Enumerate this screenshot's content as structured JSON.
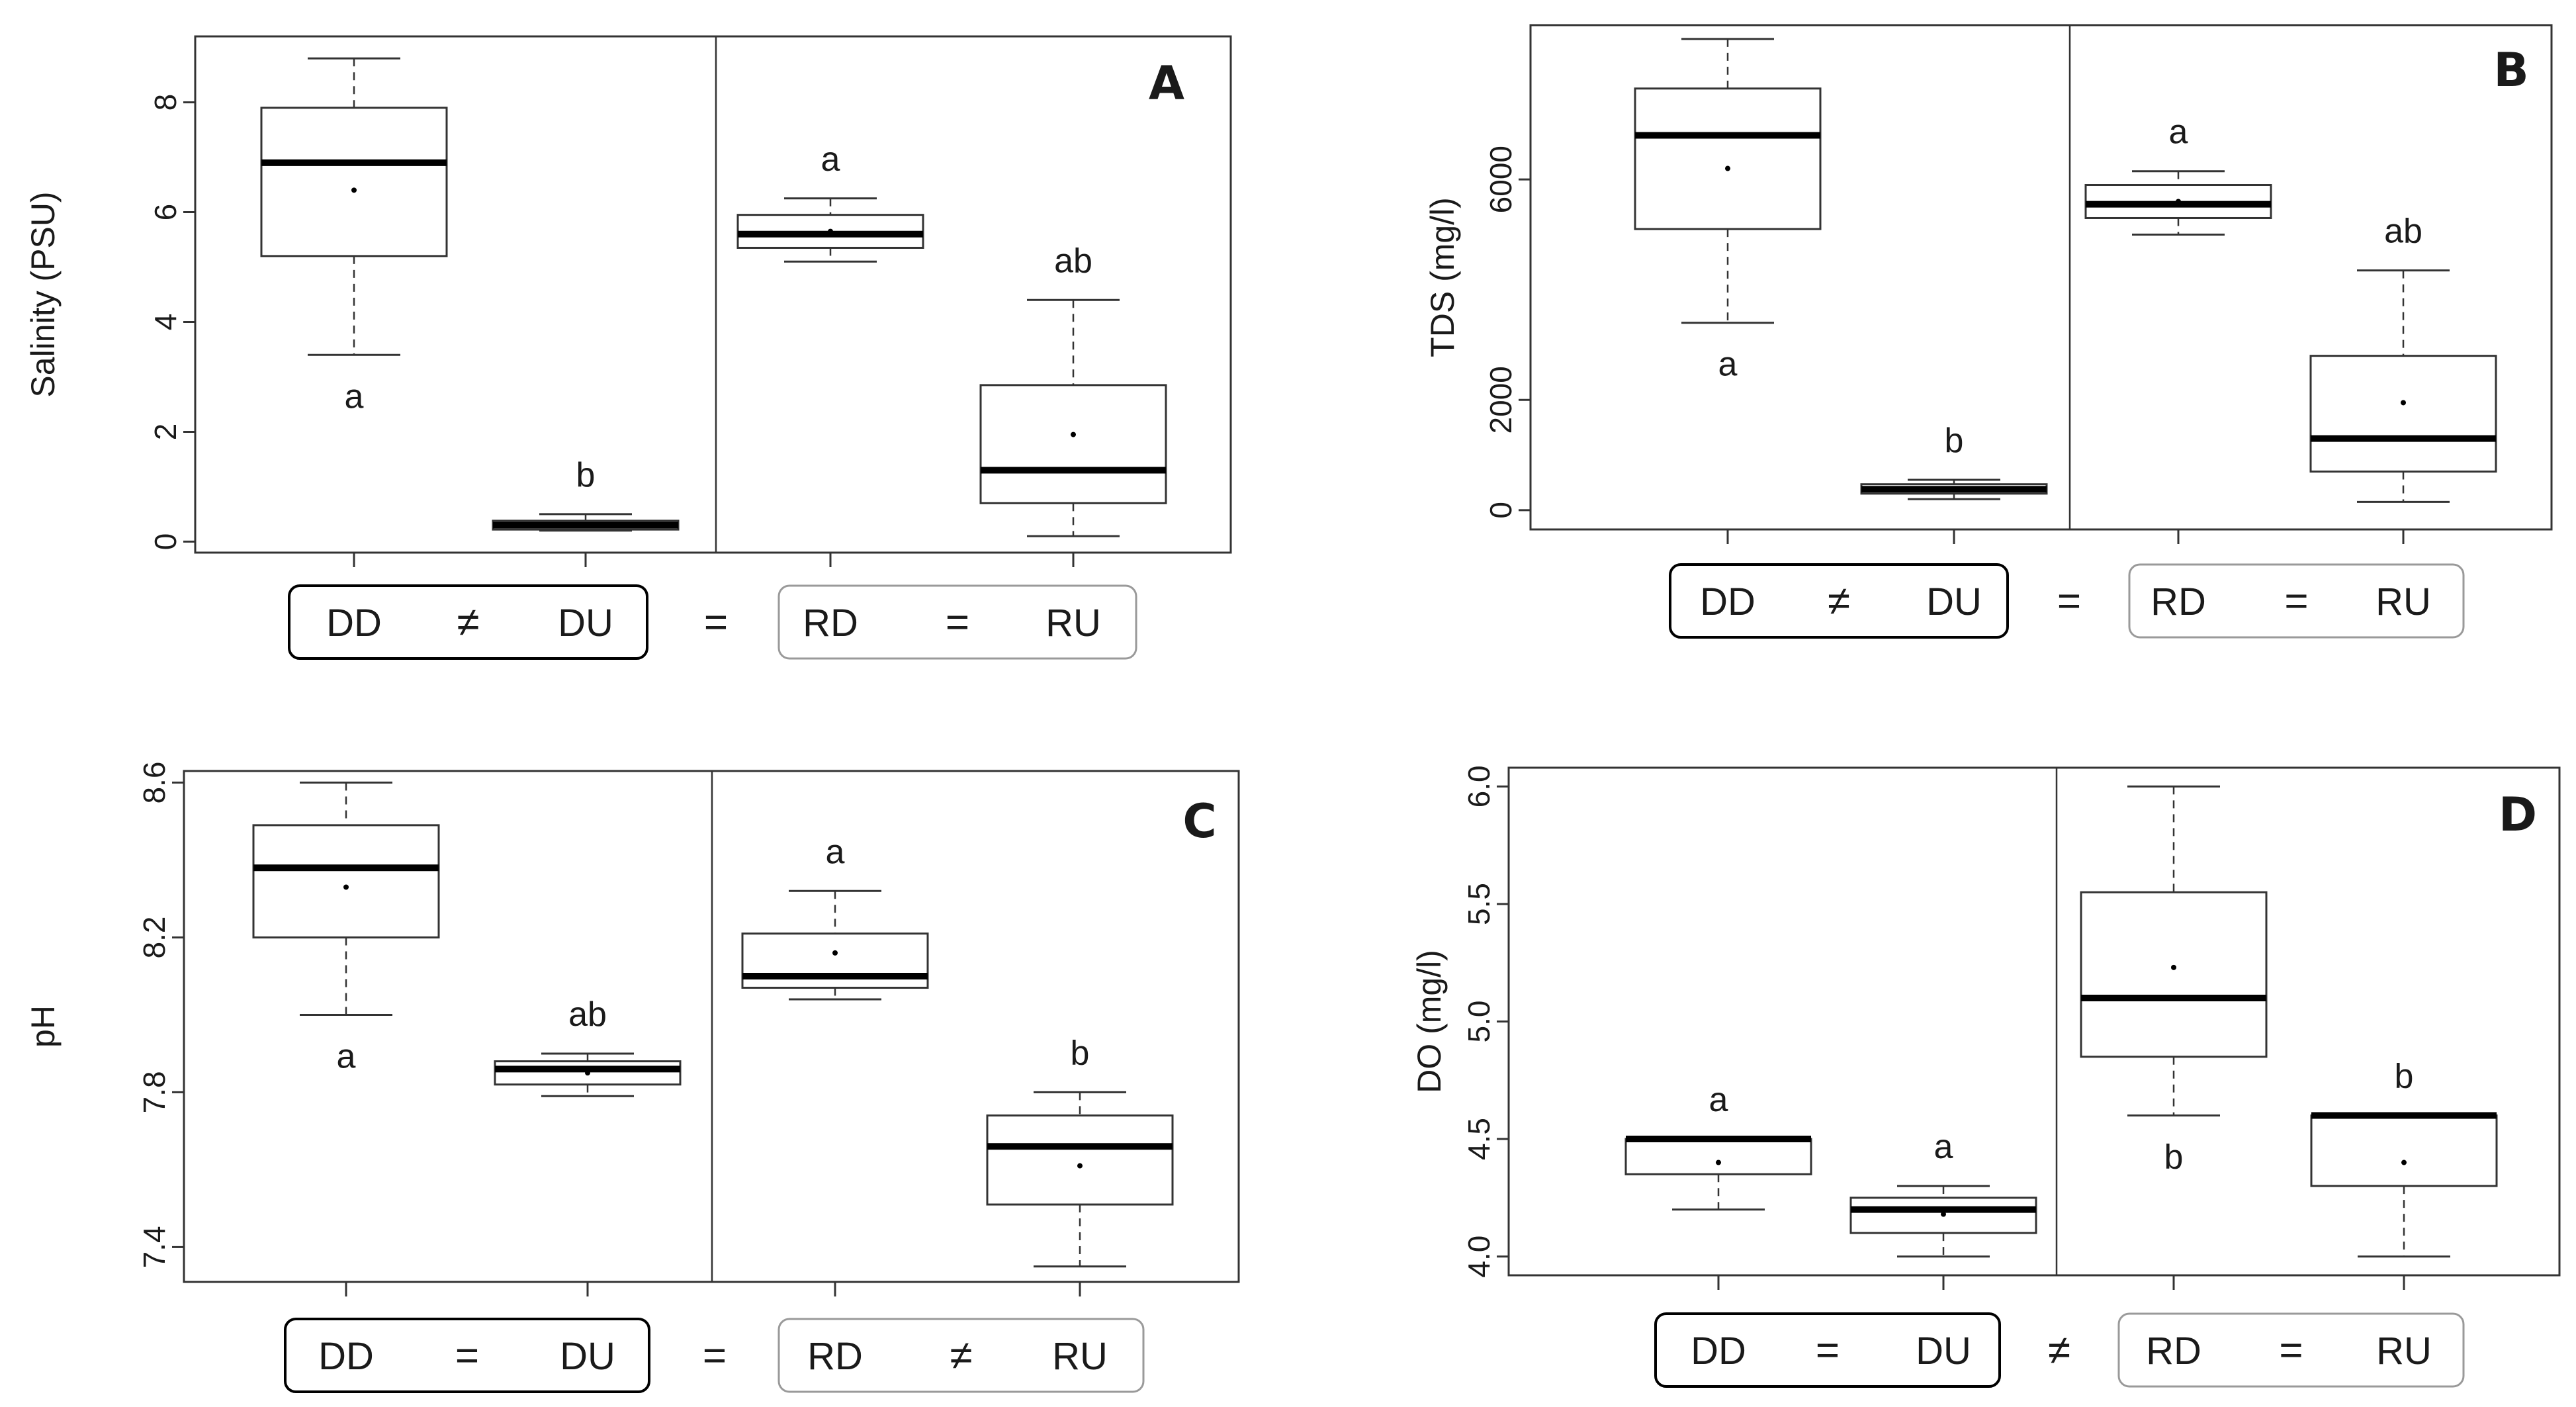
{
  "chart_data": [
    {
      "type": "boxplot",
      "panel": "A",
      "ylabel": "Salinity (PSU)",
      "ylim": [
        -0.2,
        9.2
      ],
      "yticks": [
        0,
        2,
        4,
        6,
        8
      ],
      "categories": [
        "DD",
        "DU",
        "RD",
        "RU"
      ],
      "boxes": [
        {
          "group": "DD",
          "min": 3.4,
          "q1": 5.2,
          "median": 6.9,
          "q3": 7.9,
          "max": 8.8,
          "mean": 6.4,
          "letter": "a",
          "letter_pos": "below"
        },
        {
          "group": "DU",
          "min": 0.2,
          "q1": 0.22,
          "median": 0.3,
          "q3": 0.38,
          "max": 0.5,
          "mean": 0.3,
          "letter": "b",
          "letter_pos": "above"
        },
        {
          "group": "RD",
          "min": 5.1,
          "q1": 5.35,
          "median": 5.6,
          "q3": 5.95,
          "max": 6.25,
          "mean": 5.65,
          "letter": "a",
          "letter_pos": "above"
        },
        {
          "group": "RU",
          "min": 0.1,
          "q1": 0.7,
          "median": 1.3,
          "q3": 2.85,
          "max": 4.4,
          "mean": 1.95,
          "letter": "ab",
          "letter_pos": "above"
        }
      ],
      "comparison": [
        "DD",
        "≠",
        "DU",
        "=",
        "RD",
        "=",
        "RU"
      ]
    },
    {
      "type": "boxplot",
      "panel": "B",
      "ylabel": "TDS (mg/l)",
      "ylim": [
        -350,
        8800
      ],
      "yticks": [
        0,
        2000,
        6000
      ],
      "categories": [
        "DD",
        "DU",
        "RD",
        "RU"
      ],
      "boxes": [
        {
          "group": "DD",
          "min": 3400,
          "q1": 5100,
          "median": 6800,
          "q3": 7650,
          "max": 8550,
          "mean": 6200,
          "letter": "a",
          "letter_pos": "below"
        },
        {
          "group": "DU",
          "min": 200,
          "q1": 300,
          "median": 380,
          "q3": 470,
          "max": 550,
          "mean": 380,
          "letter": "b",
          "letter_pos": "above"
        },
        {
          "group": "RD",
          "min": 5000,
          "q1": 5300,
          "median": 5550,
          "q3": 5900,
          "max": 6150,
          "mean": 5600,
          "letter": "a",
          "letter_pos": "above"
        },
        {
          "group": "RU",
          "min": 150,
          "q1": 700,
          "median": 1300,
          "q3": 2800,
          "max": 4350,
          "mean": 1950,
          "letter": "ab",
          "letter_pos": "above"
        }
      ],
      "comparison": [
        "DD",
        "≠",
        "DU",
        "=",
        "RD",
        "=",
        "RU"
      ]
    },
    {
      "type": "boxplot",
      "panel": "C",
      "ylabel": "pH",
      "ylim": [
        7.31,
        8.63
      ],
      "yticks": [
        7.4,
        7.8,
        8.2,
        8.6
      ],
      "categories": [
        "DD",
        "DU",
        "RD",
        "RU"
      ],
      "boxes": [
        {
          "group": "DD",
          "min": 8.0,
          "q1": 8.2,
          "median": 8.38,
          "q3": 8.49,
          "max": 8.6,
          "mean": 8.33,
          "letter": "a",
          "letter_pos": "below"
        },
        {
          "group": "DU",
          "min": 7.79,
          "q1": 7.82,
          "median": 7.86,
          "q3": 7.88,
          "max": 7.9,
          "mean": 7.85,
          "letter": "ab",
          "letter_pos": "above"
        },
        {
          "group": "RD",
          "min": 8.04,
          "q1": 8.07,
          "median": 8.1,
          "q3": 8.21,
          "max": 8.32,
          "mean": 8.16,
          "letter": "a",
          "letter_pos": "above"
        },
        {
          "group": "RU",
          "min": 7.35,
          "q1": 7.51,
          "median": 7.66,
          "q3": 7.74,
          "max": 7.8,
          "mean": 7.61,
          "letter": "b",
          "letter_pos": "above"
        }
      ],
      "comparison": [
        "DD",
        "=",
        "DU",
        "=",
        "RD",
        "≠",
        "RU"
      ]
    },
    {
      "type": "boxplot",
      "panel": "D",
      "ylabel": "DO (mg/l)",
      "ylim": [
        3.92,
        6.08
      ],
      "yticks": [
        4.0,
        4.5,
        5.0,
        5.5,
        6.0
      ],
      "ytick_labels": [
        "4.0",
        "4.5",
        "5.0",
        "5.5",
        "6.0"
      ],
      "categories": [
        "DD",
        "DU",
        "RD",
        "RU"
      ],
      "boxes": [
        {
          "group": "DD",
          "min": 4.2,
          "q1": 4.35,
          "median": 4.5,
          "q3": 4.5,
          "max": 4.5,
          "mean": 4.4,
          "letter": "a",
          "letter_pos": "above"
        },
        {
          "group": "DU",
          "min": 4.0,
          "q1": 4.1,
          "median": 4.2,
          "q3": 4.25,
          "max": 4.3,
          "mean": 4.18,
          "letter": "a",
          "letter_pos": "above"
        },
        {
          "group": "RD",
          "min": 4.6,
          "q1": 4.85,
          "median": 5.1,
          "q3": 5.55,
          "max": 6.0,
          "mean": 5.23,
          "letter": "b",
          "letter_pos": "below"
        },
        {
          "group": "RU",
          "min": 4.0,
          "q1": 4.3,
          "median": 4.6,
          "q3": 4.6,
          "max": 4.6,
          "mean": 4.4,
          "letter": "b",
          "letter_pos": "above"
        }
      ],
      "comparison": [
        "DD",
        "=",
        "DU",
        "≠",
        "RD",
        "=",
        "RU"
      ]
    }
  ]
}
